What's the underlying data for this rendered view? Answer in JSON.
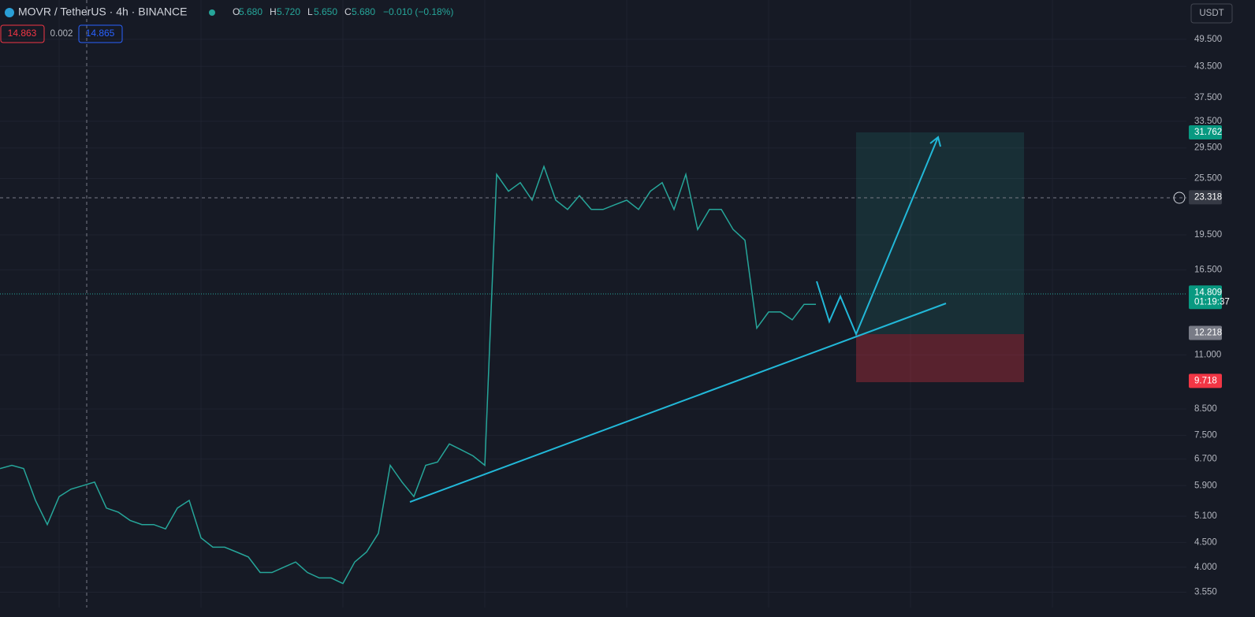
{
  "header": {
    "symbol": "MOVR / TetherUS · 4h · BINANCE",
    "o_label": "O",
    "o": "5.680",
    "h_label": "H",
    "h": "5.720",
    "l_label": "L",
    "l": "5.650",
    "c_label": "C",
    "c": "5.680",
    "change": "−0.010 (−0.18%)"
  },
  "trade_boxes": {
    "sell": "14.863",
    "spread": "0.002",
    "buy": "14.865"
  },
  "currency_button": "USDT",
  "price_axis": {
    "ylim": [
      3.3,
      59.7
    ],
    "ticks": [
      {
        "value": 49.5,
        "label": "49.500"
      },
      {
        "value": 43.5,
        "label": "43.500"
      },
      {
        "value": 37.5,
        "label": "37.500"
      },
      {
        "value": 33.5,
        "label": "33.500"
      },
      {
        "value": 29.5,
        "label": "29.500"
      },
      {
        "value": 25.5,
        "label": "25.500"
      },
      {
        "value": 19.5,
        "label": "19.500"
      },
      {
        "value": 16.5,
        "label": "16.500"
      },
      {
        "value": 11,
        "label": "11.000"
      },
      {
        "value": 8.5,
        "label": "8.500"
      },
      {
        "value": 7.5,
        "label": "7.500"
      },
      {
        "value": 6.7,
        "label": "6.700"
      },
      {
        "value": 5.9,
        "label": "5.900"
      },
      {
        "value": 5.1,
        "label": "5.100"
      },
      {
        "value": 4.5,
        "label": "4.500"
      },
      {
        "value": 4,
        "label": "4.000"
      },
      {
        "value": 3.55,
        "label": "3.550"
      }
    ]
  },
  "badges": {
    "target": {
      "value": 31.762,
      "label": "31.762"
    },
    "crosshair": {
      "value": 23.318,
      "label": "23.318"
    },
    "last": {
      "value": 14.809,
      "label": "14.809"
    },
    "countdown": "01:19:37",
    "entry": {
      "value": 12.218,
      "label": "12.218"
    },
    "stop": {
      "value": 9.718,
      "label": "9.718"
    }
  },
  "price_series": {
    "closes": [
      6.4,
      6.5,
      6.4,
      5.5,
      4.9,
      5.6,
      5.8,
      5.9,
      6.0,
      5.3,
      5.2,
      5.0,
      4.9,
      4.9,
      4.8,
      5.3,
      5.5,
      4.6,
      4.4,
      4.4,
      4.3,
      4.2,
      3.9,
      3.9,
      4.0,
      4.1,
      3.9,
      3.8,
      3.8,
      3.7,
      4.1,
      4.3,
      4.7,
      6.5,
      6.0,
      5.6,
      6.5,
      6.6,
      7.2,
      7.0,
      6.8,
      6.5,
      26,
      24,
      25,
      23,
      27,
      23,
      22,
      23.5,
      22,
      22,
      22.5,
      23,
      22,
      24,
      25,
      22,
      26,
      20,
      22,
      22,
      20,
      19,
      12.5,
      13.5,
      13.5,
      13,
      14,
      14
    ]
  }
}
